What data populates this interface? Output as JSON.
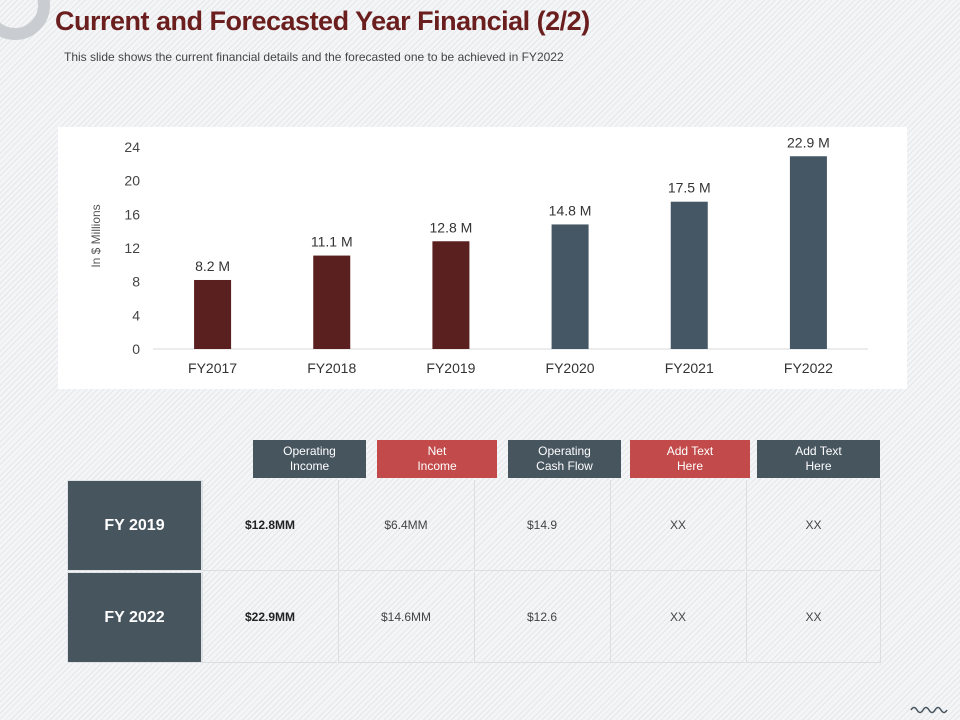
{
  "slide": {
    "title": "Current and Forecasted Year Financial (2/2)",
    "subtitle": "This slide shows the current financial details and the forecasted one to be achieved  in FY2022"
  },
  "chart_data": {
    "type": "bar",
    "categories": [
      "FY2017",
      "FY2018",
      "FY2019",
      "FY2020",
      "FY2021",
      "FY2022"
    ],
    "values": [
      8.2,
      11.1,
      12.8,
      14.8,
      17.5,
      22.9
    ],
    "data_labels": [
      "8.2 M",
      "11.1 M",
      "12.8 M",
      "14.8 M",
      "17.5 M",
      "22.9 M"
    ],
    "bar_colors": [
      "#5a1f1f",
      "#5a1f1f",
      "#5a1f1f",
      "#455764",
      "#455764",
      "#455764"
    ],
    "ylabel": "In $ Millions",
    "xlabel": "",
    "ylim": [
      0,
      24
    ],
    "yticks": [
      0,
      4,
      8,
      12,
      16,
      20,
      24
    ],
    "grid": false
  },
  "table": {
    "headers": [
      {
        "label": "Operating\nIncome",
        "color": "#47555f"
      },
      {
        "label": "Net\nIncome",
        "color": "#c24a4a"
      },
      {
        "label": "Operating\nCash Flow",
        "color": "#47555f"
      },
      {
        "label": "Add Text\nHere",
        "color": "#c24a4a"
      },
      {
        "label": "Add Text\nHere",
        "color": "#47555f"
      }
    ],
    "rows": [
      {
        "label": "FY 2019",
        "cells": [
          "$12.8MM",
          "$6.4MM",
          "$14.9",
          "XX",
          "XX"
        ]
      },
      {
        "label": "FY 2022",
        "cells": [
          "$22.9MM",
          "$14.6MM",
          "$12.6",
          "XX",
          "XX"
        ]
      }
    ]
  },
  "colors": {
    "title": "#6a1e1e",
    "slate": "#47555f",
    "red": "#c24a4a"
  }
}
